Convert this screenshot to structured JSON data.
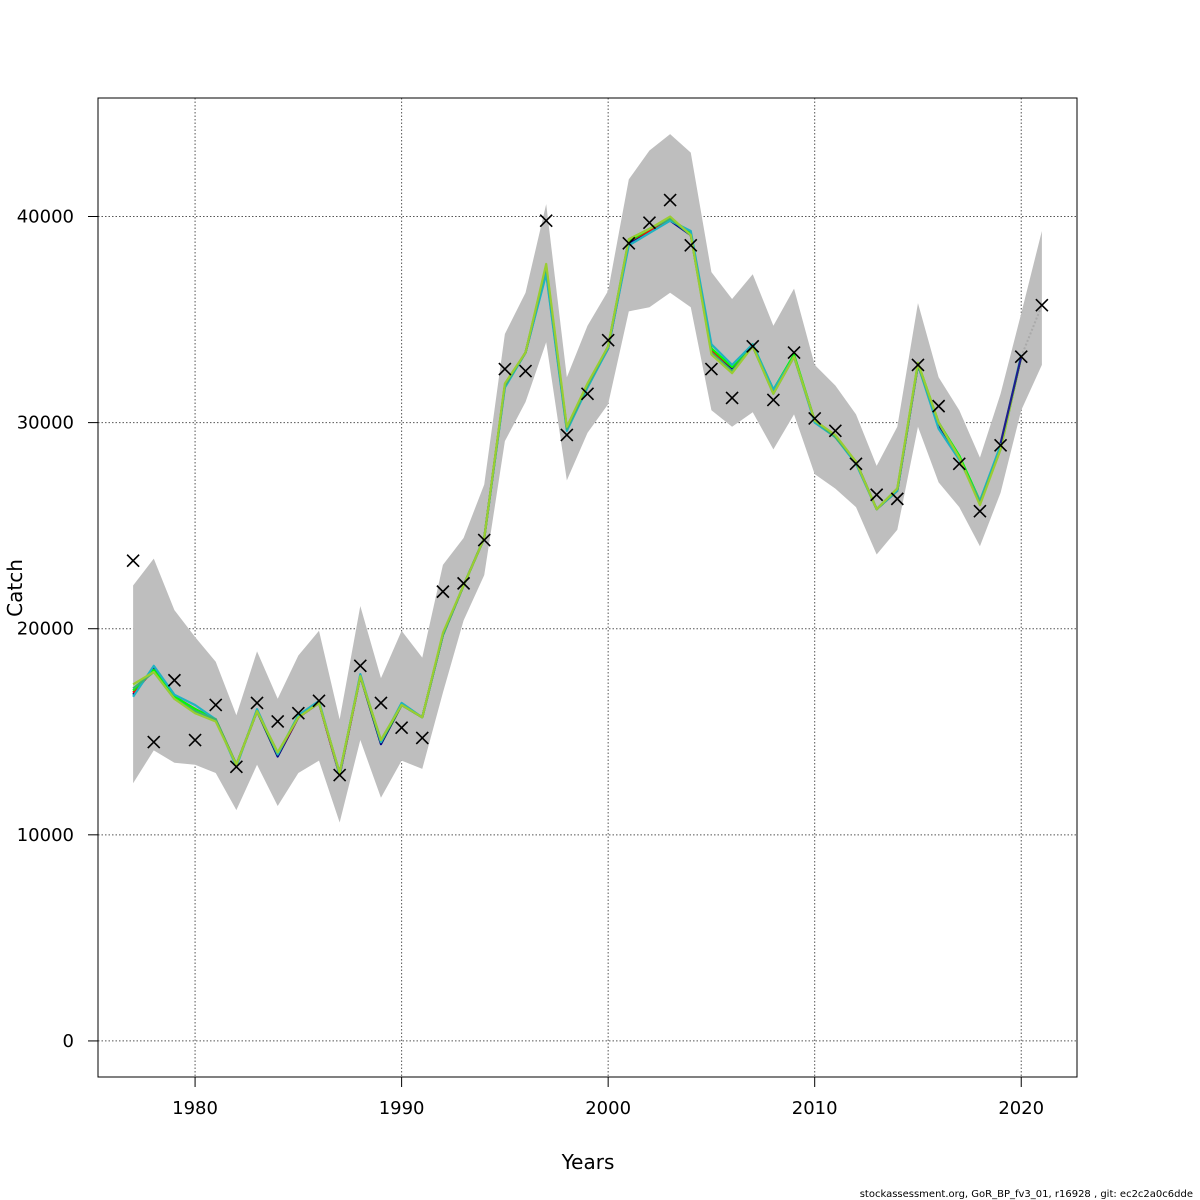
{
  "chart_data": {
    "type": "line",
    "xlabel": "Years",
    "ylabel": "Catch",
    "xlim": [
      1975.3,
      2022.7
    ],
    "ylim": [
      -1750,
      45750
    ],
    "x_ticks": [
      1980,
      1990,
      2000,
      2010,
      2020
    ],
    "y_ticks": [
      0,
      10000,
      20000,
      30000,
      40000
    ],
    "grid": true,
    "band": {
      "x": [
        1977,
        1978,
        1979,
        1980,
        1981,
        1982,
        1983,
        1984,
        1985,
        1986,
        1987,
        1988,
        1989,
        1990,
        1991,
        1992,
        1993,
        1994,
        1995,
        1996,
        1997,
        1998,
        1999,
        2000,
        2001,
        2002,
        2003,
        2004,
        2005,
        2006,
        2007,
        2008,
        2009,
        2010,
        2011,
        2012,
        2013,
        2014,
        2015,
        2016,
        2017,
        2018,
        2019,
        2020,
        2021
      ],
      "upper": [
        22100,
        23400,
        20900,
        19600,
        18400,
        15800,
        18900,
        16600,
        18700,
        19900,
        15600,
        21100,
        17600,
        19900,
        18600,
        23100,
        24400,
        27000,
        34300,
        36300,
        40600,
        32200,
        34700,
        36400,
        41800,
        43200,
        44000,
        43100,
        37300,
        36000,
        37200,
        34700,
        36500,
        32800,
        31800,
        30400,
        27900,
        29800,
        35800,
        32200,
        30600,
        28300,
        31400,
        35300,
        39300
      ],
      "lower": [
        12500,
        14100,
        13500,
        13400,
        13000,
        11200,
        13400,
        11400,
        13000,
        13600,
        10600,
        14600,
        11800,
        13600,
        13200,
        16900,
        20400,
        22600,
        29100,
        31000,
        33900,
        27200,
        29500,
        30900,
        35400,
        35600,
        36300,
        35600,
        30600,
        29800,
        30500,
        28700,
        30400,
        27500,
        26800,
        25900,
        23600,
        24800,
        29800,
        27100,
        25900,
        24000,
        26600,
        30600,
        32800
      ]
    },
    "series": [
      {
        "color": "#00008b",
        "x": [
          1977,
          1978,
          1979,
          1980,
          1981,
          1982,
          1983,
          1984,
          1985,
          1986,
          1987,
          1988,
          1989,
          1990,
          1991,
          1992,
          1993,
          1994,
          1995,
          1996,
          1997,
          1998,
          1999,
          2000,
          2001,
          2002,
          2003,
          2004,
          2005,
          2006,
          2007,
          2008,
          2009,
          2010,
          2011,
          2012,
          2013,
          2014,
          2015,
          2016,
          2017,
          2018,
          2019,
          2020
        ],
        "values": [
          16800,
          18100,
          16700,
          16100,
          15600,
          13400,
          16000,
          13800,
          15700,
          16400,
          12900,
          17700,
          14400,
          16300,
          15700,
          19700,
          22100,
          24400,
          31800,
          33400,
          37300,
          29700,
          31800,
          33600,
          38700,
          39300,
          39800,
          39100,
          33500,
          32600,
          33700,
          31500,
          33200,
          30100,
          29300,
          28100,
          25800,
          26700,
          32800,
          29900,
          28300,
          26100,
          28800,
          33200
        ]
      },
      {
        "color": "#ff0000",
        "x": [
          1977,
          1978,
          1979,
          1980,
          1981,
          1982,
          1983,
          1984,
          1985,
          1986,
          1987,
          1988,
          1989,
          1990,
          1991,
          1992,
          1993,
          1994,
          1995,
          1996,
          1997,
          1998,
          1999,
          2000,
          2001,
          2002,
          2003,
          2004,
          2005,
          2006,
          2007,
          2008,
          2009,
          2010,
          2011,
          2012,
          2013,
          2014,
          2015,
          2016,
          2017,
          2018,
          2019,
          2020
        ],
        "values": [
          16900,
          18000,
          16700,
          16100,
          15600,
          13400,
          16000,
          13900,
          15700,
          16400,
          12900,
          17700,
          14500,
          16300,
          15700,
          19700,
          22100,
          24400,
          31800,
          33400,
          37400,
          29700,
          31800,
          33600,
          38800,
          39300,
          39900,
          39200,
          33500,
          32700,
          33700,
          31500,
          33200,
          30100,
          29300,
          28100,
          25800,
          26700,
          32800,
          30000,
          28300,
          26100,
          28800,
          33200
        ]
      },
      {
        "color": "#00ff00",
        "x": [
          1977,
          1978,
          1979,
          1980,
          1981,
          1982,
          1983,
          1984,
          1985,
          1986,
          1987,
          1988,
          1989,
          1990,
          1991,
          1992,
          1993,
          1994,
          1995,
          1996,
          1997,
          1998,
          1999,
          2000,
          2001,
          2002,
          2003,
          2004,
          2005,
          2006,
          2007,
          2008,
          2009,
          2010,
          2011,
          2012,
          2013,
          2014,
          2015,
          2016,
          2017,
          2018,
          2019,
          2020
        ],
        "values": [
          17000,
          18000,
          16700,
          16100,
          15600,
          13400,
          16000,
          13900,
          15800,
          16400,
          13000,
          17700,
          14500,
          16300,
          15700,
          19700,
          22100,
          24400,
          31800,
          33400,
          37500,
          29700,
          31800,
          33700,
          38800,
          39400,
          39900,
          39200,
          33600,
          32700,
          33800,
          31600,
          33300,
          30100,
          29300,
          28100,
          25800,
          26700,
          32900,
          30000,
          28400,
          26200,
          28800,
          33200
        ]
      },
      {
        "color": "#20b2c2",
        "x": [
          1977,
          1978,
          1979,
          1980,
          1981,
          1982,
          1983,
          1984,
          1985,
          1986,
          1987,
          1988,
          1989,
          1990,
          1991,
          1992,
          1993,
          1994,
          1995,
          1996,
          1997,
          1998,
          1999,
          2000,
          2001,
          2002,
          2003,
          2004,
          2005,
          2006,
          2007,
          2008,
          2009,
          2010,
          2011,
          2012,
          2013,
          2014,
          2015,
          2016,
          2017,
          2018,
          2019,
          2020
        ],
        "values": [
          16700,
          18200,
          16800,
          16300,
          15600,
          13300,
          16100,
          13900,
          15800,
          16500,
          12900,
          17800,
          14500,
          16400,
          15700,
          19700,
          22100,
          24400,
          31700,
          33400,
          37200,
          29600,
          31700,
          33600,
          38600,
          39200,
          39800,
          39300,
          33800,
          32800,
          33800,
          31600,
          33200,
          30000,
          29300,
          28000,
          25800,
          26700,
          32800,
          29700,
          28200,
          26200,
          28900,
          33300
        ]
      },
      {
        "color": "#3cb371",
        "x": [
          1977,
          1978,
          1979,
          1980,
          1981,
          1982,
          1983,
          1984,
          1985,
          1986,
          1987,
          1988,
          1989,
          1990,
          1991,
          1992,
          1993,
          1994,
          1995,
          1996,
          1997,
          1998,
          1999,
          2000,
          2001,
          2002,
          2003,
          2004,
          2005,
          2006,
          2007,
          2008,
          2009,
          2010,
          2011,
          2012,
          2013,
          2014,
          2015,
          2016,
          2017,
          2018,
          2019,
          2020
        ],
        "values": [
          17100,
          17900,
          16600,
          16000,
          15600,
          13400,
          16000,
          14000,
          15700,
          16400,
          13000,
          17700,
          14600,
          16300,
          15700,
          19700,
          22100,
          24400,
          31800,
          33400,
          37600,
          29700,
          31800,
          33700,
          38900,
          39400,
          39900,
          39100,
          33400,
          32500,
          33700,
          31400,
          33200,
          30100,
          29300,
          28100,
          25800,
          26800,
          32800,
          30000,
          28300,
          26100,
          28700,
          33200
        ]
      },
      {
        "color": "#9acd32",
        "x": [
          1977,
          1978,
          1979,
          1980,
          1981,
          1982,
          1983,
          1984,
          1985,
          1986,
          1987,
          1988,
          1989,
          1990,
          1991,
          1992,
          1993,
          1994,
          1995,
          1996,
          1997,
          1998,
          1999,
          2000,
          2001,
          2002,
          2003,
          2004,
          2005,
          2006,
          2007,
          2008,
          2009,
          2010,
          2011,
          2012,
          2013,
          2014,
          2015,
          2016,
          2017,
          2018,
          2019,
          2020
        ],
        "values": [
          17300,
          17900,
          16600,
          15900,
          15500,
          13400,
          16000,
          14000,
          15700,
          16400,
          13000,
          17700,
          14600,
          16300,
          15700,
          19800,
          22100,
          24400,
          31900,
          33400,
          37700,
          29800,
          31900,
          33700,
          38900,
          39400,
          40000,
          39100,
          33300,
          32400,
          33700,
          31400,
          33200,
          30100,
          29400,
          28100,
          25800,
          26800,
          32900,
          30000,
          28300,
          26000,
          28700,
          33200
        ]
      },
      {
        "color": "#1e1e8c",
        "x": [
          2019,
          2020
        ],
        "values": [
          29000,
          33200
        ]
      },
      {
        "color": "#aaaaaa",
        "dashed": true,
        "x": [
          2020,
          2021
        ],
        "values": [
          33200,
          35700
        ]
      }
    ],
    "observations": {
      "x": [
        1977,
        1978,
        1979,
        1980,
        1981,
        1982,
        1983,
        1984,
        1985,
        1986,
        1987,
        1988,
        1989,
        1990,
        1991,
        1992,
        1993,
        1994,
        1995,
        1996,
        1997,
        1998,
        1999,
        2000,
        2001,
        2002,
        2003,
        2004,
        2005,
        2006,
        2007,
        2008,
        2009,
        2010,
        2011,
        2012,
        2013,
        2014,
        2015,
        2016,
        2017,
        2018,
        2019,
        2020,
        2021
      ],
      "values": [
        23300,
        14500,
        17500,
        14600,
        16300,
        13300,
        16400,
        15500,
        15900,
        16500,
        12900,
        18200,
        16400,
        15200,
        14700,
        21800,
        22200,
        24300,
        32600,
        32500,
        39800,
        29400,
        31400,
        34000,
        38700,
        39700,
        40800,
        38600,
        32600,
        31200,
        33700,
        31100,
        33400,
        30200,
        29600,
        28000,
        26500,
        26300,
        32800,
        30800,
        28000,
        25700,
        28900,
        33200,
        35700
      ]
    }
  },
  "footer": "stockassessment.org, GoR_BP_fv3_01, r16928 , git: ec2c2a0c6dde"
}
